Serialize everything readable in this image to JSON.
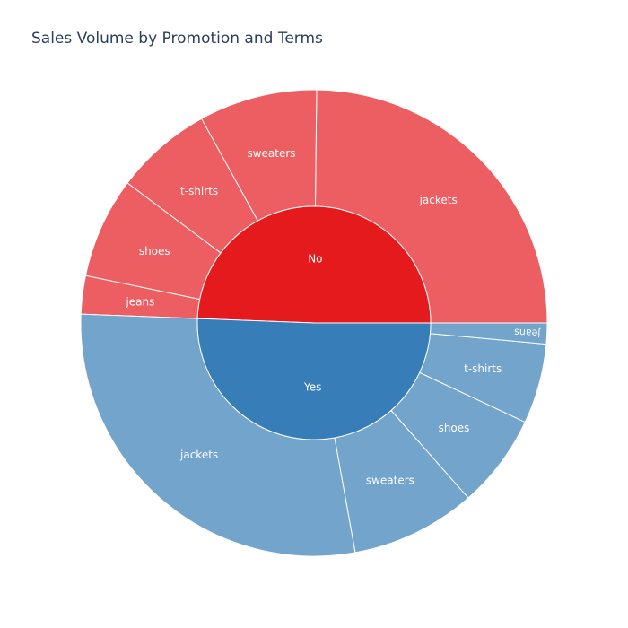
{
  "chart_data": {
    "type": "sunburst",
    "title": "Sales Volume by Promotion and Terms",
    "hierarchy": [
      "promotion",
      "product"
    ],
    "groups": [
      {
        "name": "No",
        "color": "#e41a1c",
        "children_color": "#ec5e61",
        "children": [
          {
            "name": "jackets",
            "value": 1030
          },
          {
            "name": "sweaters",
            "value": 340
          },
          {
            "name": "t-shirts",
            "value": 280
          },
          {
            "name": "shoes",
            "value": 290
          },
          {
            "name": "jeans",
            "value": 110
          }
        ]
      },
      {
        "name": "Yes",
        "color": "#377eb8",
        "children_color": "#72a4cc",
        "children": [
          {
            "name": "jackets",
            "value": 1180
          },
          {
            "name": "sweaters",
            "value": 360
          },
          {
            "name": "shoes",
            "value": 270
          },
          {
            "name": "t-shirts",
            "value": 230
          },
          {
            "name": "jeans",
            "value": 60
          }
        ]
      }
    ]
  }
}
